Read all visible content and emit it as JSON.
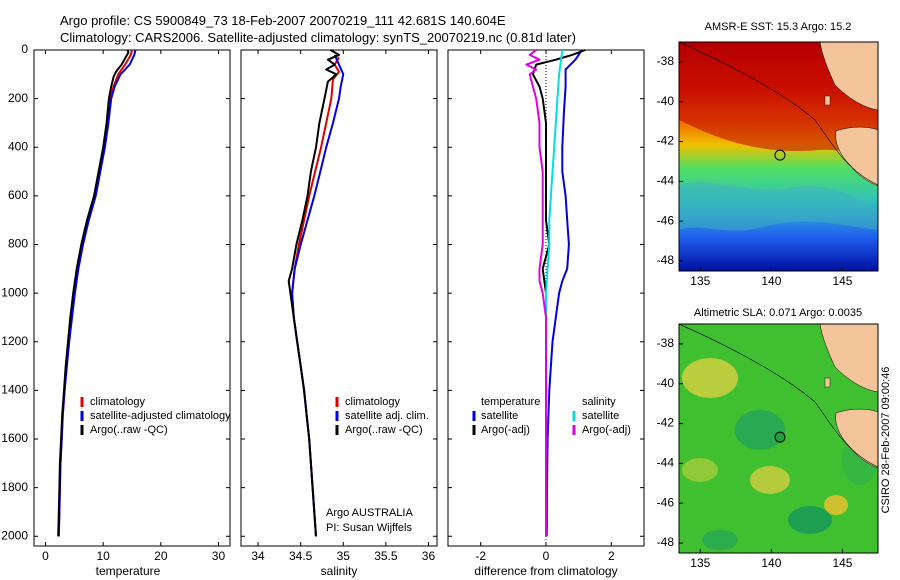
{
  "header": {
    "line1": "Argo profile: CS 5900849_73 18-Feb-2007 20070219_111 42.681S 140.604E",
    "line2": "Climatology: CARS2006. Satellite-adjusted climatology: synTS_20070219.nc (0.81d later)"
  },
  "colors": {
    "climatology": "#e00000",
    "satellite": "#0000e0",
    "argo": "#000000",
    "sat_salinity": "#00e0e0",
    "argo_salinity_adj": "#e000e0"
  },
  "chart_data": [
    {
      "id": "temperature",
      "type": "line",
      "xlabel": "temperature",
      "ylabel": "",
      "xlim": [
        -2,
        32
      ],
      "ylim": [
        2040,
        0
      ],
      "y_inverted": true,
      "xticks": [
        0,
        10,
        20,
        30
      ],
      "yticks": [
        0,
        200,
        400,
        600,
        800,
        1000,
        1200,
        1400,
        1600,
        1800,
        2000
      ],
      "legend": [
        "climatology",
        "satellite-adjusted climatology",
        "Argo(..raw -QC)"
      ],
      "series": [
        {
          "name": "climatology",
          "color": "#e00000",
          "points": [
            [
              15,
              0
            ],
            [
              14.8,
              20
            ],
            [
              13.8,
              60
            ],
            [
              12.6,
              100
            ],
            [
              11.8,
              150
            ],
            [
              11.2,
              200
            ],
            [
              10.8,
              300
            ],
            [
              10.2,
              400
            ],
            [
              9.4,
              500
            ],
            [
              8.6,
              600
            ],
            [
              7.4,
              700
            ],
            [
              6.4,
              800
            ],
            [
              5.6,
              900
            ],
            [
              5.0,
              1000
            ],
            [
              4.5,
              1100
            ],
            [
              4.0,
              1200
            ],
            [
              3.6,
              1300
            ],
            [
              3.3,
              1400
            ],
            [
              3.0,
              1500
            ],
            [
              2.8,
              1600
            ],
            [
              2.6,
              1700
            ],
            [
              2.5,
              1800
            ],
            [
              2.4,
              1900
            ],
            [
              2.3,
              2000
            ]
          ]
        },
        {
          "name": "satellite-adjusted climatology",
          "color": "#0000e0",
          "points": [
            [
              15.6,
              0
            ],
            [
              15.4,
              20
            ],
            [
              14.6,
              60
            ],
            [
              13.0,
              100
            ],
            [
              12.0,
              150
            ],
            [
              11.4,
              200
            ],
            [
              10.9,
              300
            ],
            [
              10.3,
              400
            ],
            [
              9.5,
              500
            ],
            [
              8.7,
              600
            ],
            [
              7.5,
              700
            ],
            [
              6.5,
              800
            ],
            [
              5.7,
              900
            ],
            [
              5.1,
              1000
            ],
            [
              4.6,
              1100
            ],
            [
              4.1,
              1200
            ],
            [
              3.7,
              1300
            ],
            [
              3.3,
              1400
            ],
            [
              3.0,
              1500
            ],
            [
              2.8,
              1600
            ],
            [
              2.6,
              1700
            ],
            [
              2.5,
              1800
            ],
            [
              2.4,
              1900
            ],
            [
              2.3,
              2000
            ]
          ]
        },
        {
          "name": "Argo(..raw -QC)",
          "color": "#000000",
          "points": [
            [
              14.2,
              0
            ],
            [
              14.4,
              10
            ],
            [
              13.9,
              30
            ],
            [
              13.2,
              60
            ],
            [
              12.2,
              90
            ],
            [
              11.8,
              110
            ],
            [
              11.4,
              150
            ],
            [
              11.0,
              200
            ],
            [
              10.6,
              300
            ],
            [
              10.0,
              400
            ],
            [
              9.2,
              500
            ],
            [
              8.4,
              600
            ],
            [
              7.2,
              700
            ],
            [
              6.2,
              800
            ],
            [
              5.4,
              900
            ],
            [
              4.8,
              1000
            ],
            [
              4.3,
              1100
            ],
            [
              3.9,
              1200
            ],
            [
              3.5,
              1300
            ],
            [
              3.2,
              1400
            ],
            [
              2.9,
              1500
            ],
            [
              2.7,
              1600
            ],
            [
              2.5,
              1700
            ],
            [
              2.4,
              1800
            ],
            [
              2.3,
              1900
            ],
            [
              2.2,
              2000
            ]
          ]
        }
      ]
    },
    {
      "id": "salinity",
      "type": "line",
      "xlabel": "salinity",
      "xlim": [
        33.8,
        36.1
      ],
      "ylim": [
        2040,
        0
      ],
      "y_inverted": true,
      "xticks": [
        34,
        34.5,
        35,
        35.5,
        36
      ],
      "legend": [
        "climatology",
        "satellite adj. clim.",
        "Argo(..raw -QC)"
      ],
      "note1": "Argo AUSTRALIA",
      "note2": "PI: Susan Wijffels",
      "series": [
        {
          "name": "climatology",
          "color": "#e00000",
          "points": [
            [
              34.95,
              30
            ],
            [
              34.9,
              60
            ],
            [
              34.95,
              90
            ],
            [
              34.88,
              120
            ],
            [
              34.86,
              200
            ],
            [
              34.8,
              300
            ],
            [
              34.74,
              400
            ],
            [
              34.67,
              500
            ],
            [
              34.6,
              600
            ],
            [
              34.54,
              700
            ],
            [
              34.48,
              800
            ],
            [
              34.43,
              900
            ],
            [
              34.4,
              1000
            ],
            [
              34.42,
              1100
            ],
            [
              34.46,
              1200
            ],
            [
              34.5,
              1300
            ],
            [
              34.54,
              1400
            ],
            [
              34.57,
              1500
            ],
            [
              34.6,
              1600
            ],
            [
              34.62,
              1700
            ],
            [
              34.64,
              1800
            ],
            [
              34.66,
              1900
            ],
            [
              34.68,
              2000
            ]
          ]
        },
        {
          "name": "satellite adj. clim.",
          "color": "#0000e0",
          "points": [
            [
              34.9,
              20
            ],
            [
              34.95,
              60
            ],
            [
              35.0,
              100
            ],
            [
              34.97,
              150
            ],
            [
              34.95,
              200
            ],
            [
              34.88,
              300
            ],
            [
              34.8,
              400
            ],
            [
              34.73,
              500
            ],
            [
              34.66,
              600
            ],
            [
              34.58,
              700
            ],
            [
              34.5,
              800
            ],
            [
              34.43,
              900
            ],
            [
              34.4,
              1000
            ],
            [
              34.42,
              1100
            ],
            [
              34.46,
              1200
            ],
            [
              34.5,
              1300
            ],
            [
              34.54,
              1400
            ],
            [
              34.57,
              1500
            ],
            [
              34.6,
              1600
            ],
            [
              34.62,
              1700
            ],
            [
              34.64,
              1800
            ],
            [
              34.66,
              1900
            ],
            [
              34.68,
              2000
            ]
          ]
        },
        {
          "name": "Argo(..raw -QC)",
          "color": "#000000",
          "points": [
            [
              34.85,
              0
            ],
            [
              34.95,
              20
            ],
            [
              34.82,
              40
            ],
            [
              34.9,
              60
            ],
            [
              34.8,
              80
            ],
            [
              34.92,
              100
            ],
            [
              34.82,
              130
            ],
            [
              34.78,
              200
            ],
            [
              34.72,
              300
            ],
            [
              34.68,
              400
            ],
            [
              34.62,
              500
            ],
            [
              34.58,
              600
            ],
            [
              34.52,
              700
            ],
            [
              34.45,
              800
            ],
            [
              34.4,
              900
            ],
            [
              34.36,
              950
            ],
            [
              34.38,
              1000
            ],
            [
              34.42,
              1100
            ],
            [
              34.46,
              1200
            ],
            [
              34.5,
              1300
            ],
            [
              34.54,
              1400
            ],
            [
              34.57,
              1500
            ],
            [
              34.6,
              1600
            ],
            [
              34.62,
              1700
            ],
            [
              34.64,
              1800
            ],
            [
              34.66,
              1900
            ],
            [
              34.68,
              2000
            ]
          ]
        }
      ]
    },
    {
      "id": "difference",
      "type": "line",
      "xlabel": "difference from climatology",
      "xlim": [
        -3,
        3
      ],
      "ylim": [
        2040,
        0
      ],
      "y_inverted": true,
      "xticks": [
        -2,
        0,
        2
      ],
      "legend_left_title": "temperature",
      "legend_right_title": "salinity",
      "legend": [
        "satellite",
        "Argo(-adj)",
        "satellite",
        "Argo(-adj)"
      ],
      "series": [
        {
          "name": "satellite",
          "group": "temperature",
          "color": "#0000e0",
          "points": [
            [
              1.1,
              0
            ],
            [
              0.9,
              40
            ],
            [
              0.6,
              80
            ],
            [
              0.6,
              150
            ],
            [
              0.55,
              250
            ],
            [
              0.5,
              400
            ],
            [
              0.5,
              500
            ],
            [
              0.6,
              600
            ],
            [
              0.65,
              700
            ],
            [
              0.7,
              800
            ],
            [
              0.65,
              900
            ],
            [
              0.5,
              950
            ],
            [
              0.4,
              1000
            ],
            [
              0.3,
              1100
            ],
            [
              0.2,
              1200
            ],
            [
              0.1,
              1400
            ],
            [
              0.05,
              1600
            ],
            [
              0.03,
              1800
            ],
            [
              0.02,
              2000
            ]
          ]
        },
        {
          "name": "Argo(-adj)",
          "group": "temperature",
          "color": "#000000",
          "points": [
            [
              1.2,
              0
            ],
            [
              0.8,
              20
            ],
            [
              0.3,
              40
            ],
            [
              -0.3,
              60
            ],
            [
              -0.4,
              100
            ],
            [
              -0.2,
              150
            ],
            [
              -0.1,
              200
            ],
            [
              0,
              300
            ],
            [
              0,
              500
            ],
            [
              0,
              700
            ],
            [
              0.1,
              800
            ],
            [
              -0.1,
              900
            ],
            [
              0,
              1000
            ],
            [
              0,
              1200
            ],
            [
              0,
              1500
            ],
            [
              0,
              2000
            ]
          ]
        },
        {
          "name": "satellite",
          "group": "salinity",
          "color": "#00e0e0",
          "points": [
            [
              0.5,
              0
            ],
            [
              0.45,
              50
            ],
            [
              0.4,
              100
            ],
            [
              0.35,
              200
            ],
            [
              0.3,
              300
            ],
            [
              0.25,
              400
            ],
            [
              0.2,
              500
            ],
            [
              0.15,
              600
            ],
            [
              0.1,
              700
            ],
            [
              0.1,
              800
            ],
            [
              0.05,
              900
            ],
            [
              0,
              1000
            ],
            [
              0,
              1100
            ],
            [
              0,
              1200
            ],
            [
              0,
              1400
            ],
            [
              0,
              1600
            ],
            [
              0,
              1800
            ],
            [
              0,
              2000
            ]
          ]
        },
        {
          "name": "Argo(-adj)",
          "group": "salinity",
          "color": "#e000e0",
          "points": [
            [
              -0.3,
              0
            ],
            [
              -0.5,
              20
            ],
            [
              -0.2,
              40
            ],
            [
              -0.6,
              60
            ],
            [
              -0.3,
              80
            ],
            [
              -0.5,
              100
            ],
            [
              -0.4,
              150
            ],
            [
              -0.3,
              200
            ],
            [
              -0.2,
              300
            ],
            [
              -0.2,
              400
            ],
            [
              -0.1,
              500
            ],
            [
              -0.1,
              600
            ],
            [
              -0.1,
              700
            ],
            [
              -0.1,
              800
            ],
            [
              -0.2,
              900
            ],
            [
              -0.2,
              950
            ],
            [
              -0.1,
              1000
            ],
            [
              0,
              1100
            ],
            [
              0,
              1200
            ],
            [
              0,
              1500
            ],
            [
              0,
              2000
            ]
          ]
        }
      ]
    },
    {
      "id": "sst_map",
      "type": "heatmap",
      "title": "AMSR-E SST: 15.3 Argo: 15.2",
      "xlim": [
        133.5,
        147.5
      ],
      "ylim": [
        -48.5,
        -37
      ],
      "xticks": [
        135,
        140,
        145
      ],
      "yticks": [
        -38,
        -40,
        -42,
        -44,
        -46,
        -48
      ],
      "marker": [
        140.604,
        -42.681
      ]
    },
    {
      "id": "sla_map",
      "type": "heatmap",
      "title": "Altimetric SLA: 0.071 Argo: 0.0035",
      "xlim": [
        133.5,
        147.5
      ],
      "ylim": [
        -48.5,
        -37
      ],
      "xticks": [
        135,
        140,
        145
      ],
      "yticks": [
        -38,
        -40,
        -42,
        -44,
        -46,
        -48
      ],
      "marker": [
        140.604,
        -42.681
      ],
      "side_label": "CSIRO 28-Feb-2007 09:00:46"
    }
  ]
}
